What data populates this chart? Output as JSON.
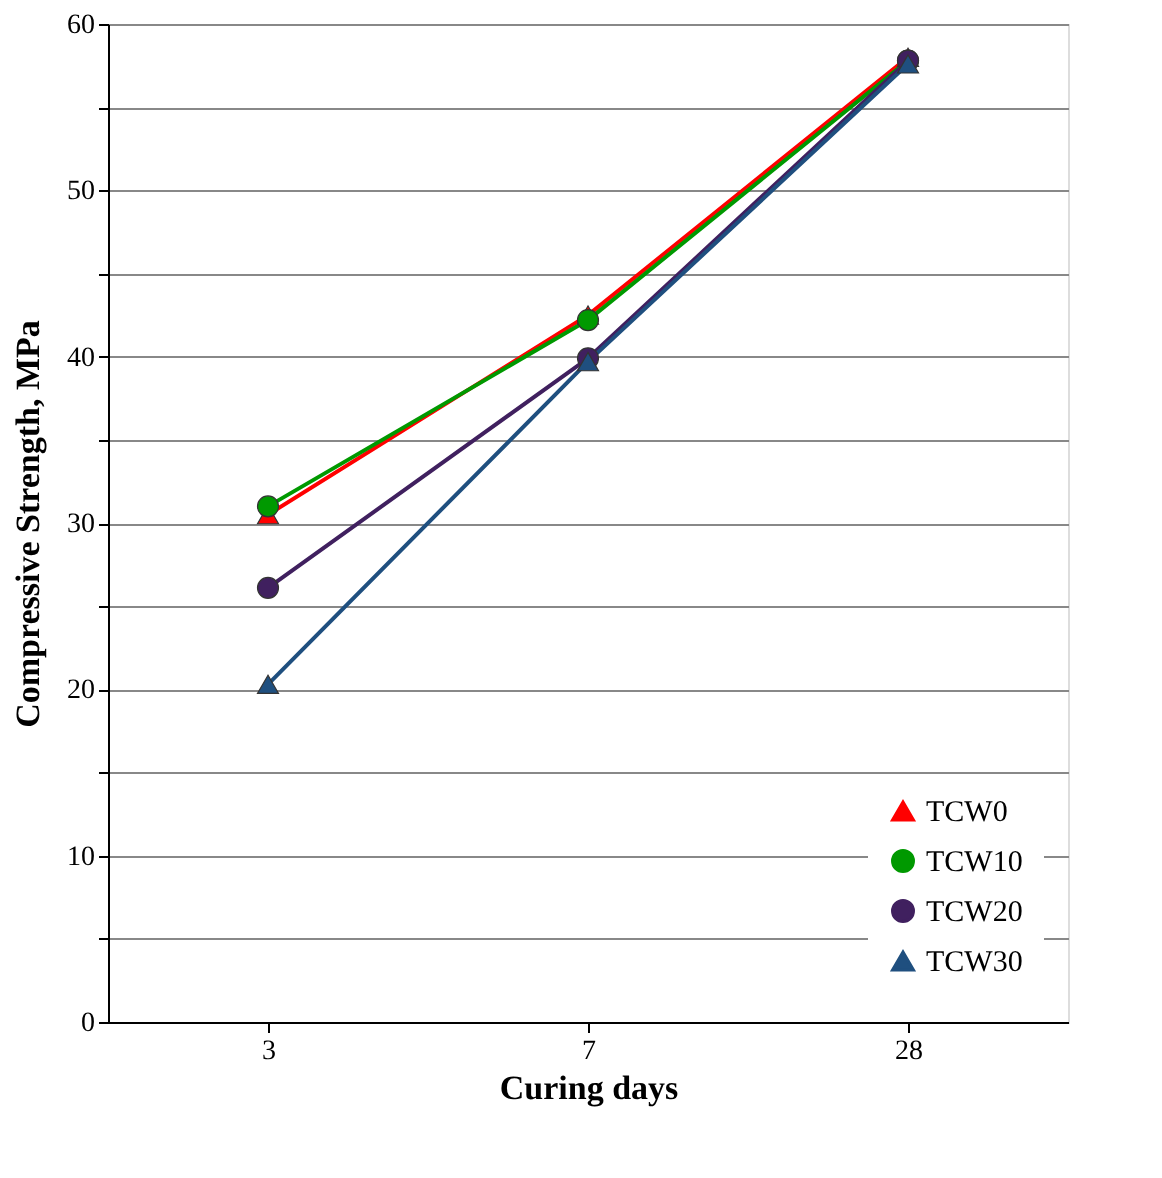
{
  "chart_data": {
    "type": "line",
    "xlabel": "Curing days",
    "ylabel": "Compressive Strength, MPa",
    "categories": [
      "3",
      "7",
      "28"
    ],
    "series": [
      {
        "name": "TCW0",
        "color": "#ff0000",
        "marker": "triangle",
        "values": [
          30.5,
          42.5,
          58.0
        ]
      },
      {
        "name": "TCW10",
        "color": "#009900",
        "marker": "circle",
        "values": [
          31.0,
          42.2,
          57.8
        ]
      },
      {
        "name": "TCW20",
        "color": "#40205f",
        "marker": "circle",
        "values": [
          26.1,
          39.9,
          57.8
        ]
      },
      {
        "name": "TCW30",
        "color": "#1f4f7f",
        "marker": "triangle",
        "values": [
          20.3,
          39.7,
          57.6
        ]
      }
    ],
    "ylim": [
      0,
      60
    ],
    "yticks": [
      0,
      {
        "value": 5,
        "label": null
      },
      10,
      {
        "value": 15,
        "label": null
      },
      20,
      {
        "value": 25,
        "label": null
      },
      30,
      {
        "value": 35,
        "label": null
      },
      40,
      {
        "value": 45,
        "label": null
      },
      50,
      {
        "value": 55,
        "label": null
      },
      60
    ],
    "grid": "y",
    "legend": "bottom right",
    "line_style": "solid"
  }
}
